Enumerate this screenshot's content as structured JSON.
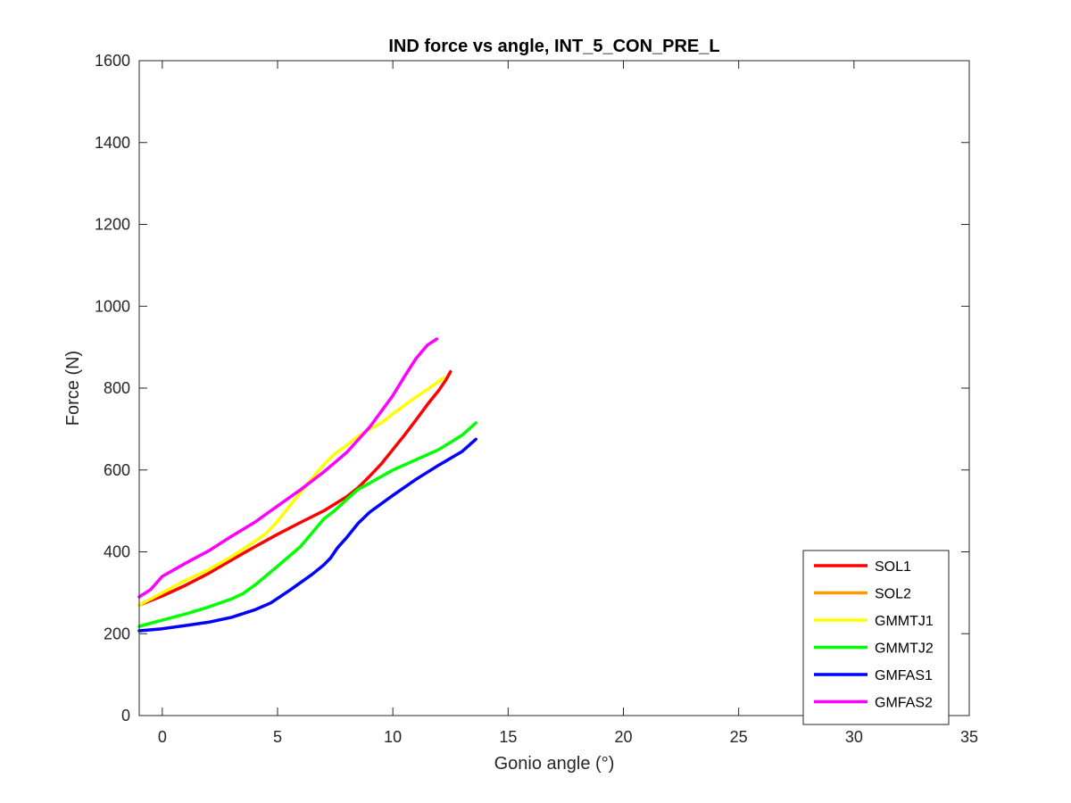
{
  "chart_data": {
    "type": "line",
    "title": "IND force vs angle, INT_5_CON_PRE_L",
    "xlabel": "Gonio angle (°)",
    "ylabel": "Force (N)",
    "xlim": [
      -1,
      35
    ],
    "ylim": [
      0,
      1600
    ],
    "xticks": [
      0,
      5,
      10,
      15,
      20,
      25,
      30,
      35
    ],
    "yticks": [
      0,
      200,
      400,
      600,
      800,
      1000,
      1200,
      1400,
      1600
    ],
    "grid": false,
    "legend_position": "bottom-right",
    "series": [
      {
        "name": "SOL1",
        "color": "#ff0000",
        "x": [
          -1,
          0,
          1,
          2,
          3,
          4,
          5,
          6,
          7,
          8,
          8.5,
          9,
          9.5,
          10,
          10.5,
          11,
          11.5,
          12,
          12.3,
          12.5
        ],
        "y": [
          270,
          292,
          318,
          347,
          380,
          412,
          443,
          472,
          500,
          535,
          557,
          585,
          615,
          650,
          685,
          722,
          760,
          795,
          820,
          840
        ]
      },
      {
        "name": "SOL2",
        "color": "#ff9900",
        "x": [],
        "y": []
      },
      {
        "name": "GMMTJ1",
        "color": "#ffff00",
        "x": [
          -1,
          0,
          1,
          2,
          3,
          4,
          4.5,
          5,
          5.5,
          6,
          6.5,
          7,
          7.5,
          8,
          8.5,
          9,
          9.5,
          10,
          10.5,
          11,
          11.5,
          12.2
        ],
        "y": [
          270,
          300,
          330,
          356,
          388,
          425,
          445,
          475,
          510,
          545,
          580,
          613,
          640,
          660,
          683,
          700,
          715,
          737,
          758,
          778,
          797,
          825
        ]
      },
      {
        "name": "GMMTJ2",
        "color": "#00ff00",
        "x": [
          -1,
          0,
          1,
          2,
          3,
          3.5,
          4,
          5,
          6,
          7,
          7.5,
          8,
          8.5,
          9,
          10,
          11,
          12,
          13,
          13.6
        ],
        "y": [
          218,
          233,
          248,
          265,
          285,
          298,
          318,
          365,
          413,
          480,
          502,
          528,
          553,
          568,
          600,
          625,
          650,
          685,
          715
        ]
      },
      {
        "name": "GMFAS1",
        "color": "#0000ff",
        "x": [
          -1,
          0,
          1,
          2,
          3,
          4,
          4.7,
          5.5,
          6.5,
          7,
          7.3,
          7.6,
          8,
          8.5,
          9,
          10,
          11,
          12,
          13,
          13.6
        ],
        "y": [
          207,
          212,
          220,
          228,
          240,
          258,
          275,
          305,
          345,
          368,
          385,
          410,
          435,
          470,
          497,
          538,
          577,
          612,
          645,
          675
        ]
      },
      {
        "name": "GMFAS2",
        "color": "#ff00ff",
        "x": [
          -1,
          -0.5,
          0,
          0.5,
          1,
          2,
          3,
          4,
          5,
          6,
          7,
          8,
          9,
          10,
          10.5,
          11,
          11.5,
          11.9
        ],
        "y": [
          290,
          308,
          340,
          356,
          372,
          402,
          438,
          472,
          512,
          552,
          595,
          643,
          705,
          782,
          828,
          872,
          905,
          920
        ]
      }
    ]
  }
}
